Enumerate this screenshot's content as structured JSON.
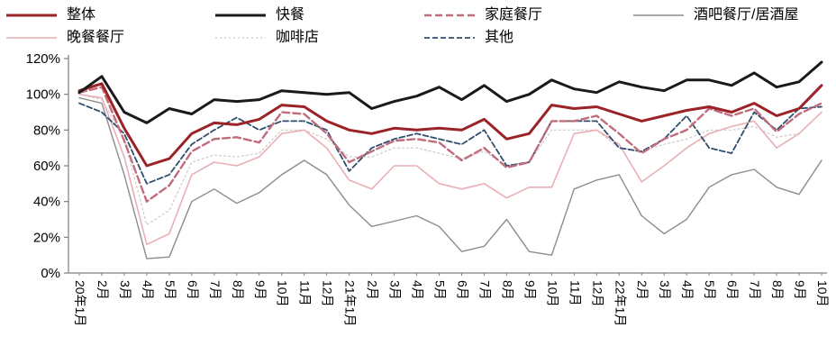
{
  "chart_data": {
    "type": "line",
    "title": "",
    "xlabel": "",
    "ylabel": "",
    "grid": false,
    "legend_position": "top",
    "ylim": [
      0,
      120
    ],
    "ytick_values": [
      0,
      20,
      40,
      60,
      80,
      100,
      120
    ],
    "yticks": [
      "0%",
      "20%",
      "40%",
      "60%",
      "80%",
      "100%",
      "120%"
    ],
    "categories": [
      "20年1月",
      "2月",
      "3月",
      "4月",
      "5月",
      "6月",
      "7月",
      "8月",
      "9月",
      "10月",
      "11月",
      "12月",
      "21年1月",
      "2月",
      "3月",
      "4月",
      "5月",
      "6月",
      "7月",
      "8月",
      "9月",
      "10月",
      "11月",
      "12月",
      "22年1月",
      "2月",
      "3月",
      "4月",
      "5月",
      "6月",
      "7月",
      "8月",
      "9月",
      "10月"
    ],
    "series": [
      {
        "name": "整体",
        "color": "#9B2226",
        "dash": "solid",
        "dasharray": "",
        "width": 3,
        "values": [
          102,
          106,
          81,
          60,
          64,
          78,
          84,
          83,
          86,
          94,
          93,
          85,
          80,
          78,
          81,
          80,
          81,
          80,
          86,
          75,
          78,
          94,
          92,
          93,
          89,
          85,
          88,
          91,
          93,
          90,
          95,
          88,
          92,
          105
        ]
      },
      {
        "name": "快餐",
        "color": "#1A1A1A",
        "dash": "solid",
        "dasharray": "",
        "width": 3,
        "values": [
          101,
          110,
          90,
          84,
          92,
          89,
          97,
          96,
          97,
          102,
          101,
          100,
          101,
          92,
          96,
          99,
          104,
          97,
          105,
          96,
          100,
          108,
          103,
          101,
          107,
          104,
          102,
          108,
          108,
          105,
          112,
          104,
          107,
          118
        ]
      },
      {
        "name": "家庭餐厅",
        "color": "#C06C7C",
        "dash": "dashed",
        "dasharray": "8,4",
        "width": 2.4,
        "values": [
          101,
          104,
          74,
          40,
          49,
          68,
          75,
          76,
          73,
          90,
          89,
          78,
          62,
          68,
          74,
          75,
          73,
          63,
          70,
          59,
          62,
          85,
          85,
          88,
          78,
          67,
          75,
          80,
          92,
          88,
          92,
          79,
          89,
          95
        ]
      },
      {
        "name": "酒吧餐厅/居酒屋",
        "color": "#8C8C8C",
        "dash": "solid",
        "dasharray": "",
        "width": 1.4,
        "values": [
          98,
          95,
          55,
          8,
          9,
          40,
          47,
          39,
          45,
          55,
          63,
          55,
          38,
          26,
          29,
          32,
          26,
          12,
          15,
          30,
          12,
          10,
          47,
          52,
          55,
          32,
          22,
          30,
          48,
          55,
          58,
          48,
          44,
          63
        ]
      },
      {
        "name": "晚餐餐厅",
        "color": "#E9AFB4",
        "dash": "solid",
        "dasharray": "",
        "width": 1.6,
        "values": [
          100,
          98,
          65,
          16,
          22,
          55,
          62,
          60,
          65,
          78,
          80,
          70,
          52,
          47,
          60,
          60,
          50,
          47,
          50,
          42,
          48,
          48,
          78,
          80,
          72,
          51,
          60,
          70,
          78,
          82,
          85,
          70,
          78,
          90
        ]
      },
      {
        "name": "咖啡店",
        "color": "#CBCBCB",
        "dash": "dotted",
        "dasharray": "2,3",
        "width": 1.2,
        "values": [
          100,
          97,
          75,
          27,
          35,
          62,
          66,
          65,
          67,
          80,
          80,
          75,
          65,
          65,
          70,
          70,
          67,
          64,
          68,
          60,
          62,
          80,
          80,
          80,
          70,
          68,
          72,
          75,
          80,
          80,
          82,
          76,
          78,
          90
        ]
      },
      {
        "name": "其他",
        "color": "#2F4E6E",
        "dash": "dashed",
        "dasharray": "6,3",
        "width": 1.8,
        "values": [
          95,
          90,
          78,
          50,
          55,
          72,
          80,
          87,
          80,
          85,
          85,
          80,
          57,
          70,
          75,
          78,
          75,
          72,
          80,
          60,
          62,
          85,
          85,
          85,
          70,
          68,
          75,
          88,
          70,
          67,
          90,
          80,
          92,
          93
        ]
      }
    ],
    "z_order": [
      5,
      4,
      3,
      6,
      2,
      0,
      1
    ]
  }
}
